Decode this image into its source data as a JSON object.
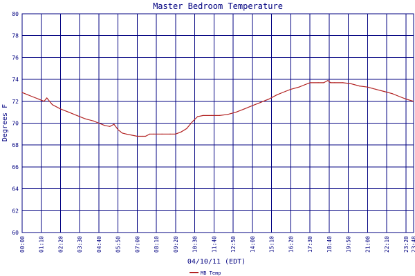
{
  "chart_data": {
    "type": "line",
    "title": "Master Bedroom Temperature",
    "xlabel": "04/10/11 (EDT)",
    "ylabel": "Degrees F",
    "ylim": [
      60,
      80
    ],
    "yticks": [
      "60",
      "62",
      "64",
      "66",
      "68",
      "70",
      "72",
      "74",
      "76",
      "78",
      "80"
    ],
    "xticks": [
      "00:00",
      "01:10",
      "02:20",
      "03:30",
      "04:40",
      "05:50",
      "07:00",
      "08:10",
      "09:20",
      "10:30",
      "11:40",
      "12:50",
      "14:00",
      "15:10",
      "16:20",
      "17:30",
      "18:40",
      "19:50",
      "21:00",
      "22:10",
      "23:20",
      "23:48"
    ],
    "grid": true,
    "legend_position": "bottom-center",
    "colors": {
      "series": "#b22222",
      "grid": "#000080",
      "text": "#000080"
    },
    "series": [
      {
        "name": "MB Temp",
        "x": [
          "00:00",
          "00:20",
          "00:40",
          "01:00",
          "01:10",
          "01:20",
          "01:30",
          "01:50",
          "02:20",
          "02:50",
          "03:20",
          "03:50",
          "04:20",
          "04:40",
          "05:00",
          "05:20",
          "05:35",
          "05:50",
          "06:05",
          "06:20",
          "06:40",
          "07:00",
          "07:20",
          "07:30",
          "07:45",
          "08:00",
          "08:30",
          "09:00",
          "09:20",
          "09:40",
          "10:00",
          "10:20",
          "10:40",
          "11:00",
          "11:30",
          "12:00",
          "12:30",
          "13:00",
          "13:30",
          "14:00",
          "14:30",
          "15:00",
          "15:30",
          "16:00",
          "16:20",
          "16:50",
          "17:10",
          "17:30",
          "18:00",
          "18:20",
          "18:35",
          "18:45",
          "19:00",
          "19:30",
          "20:00",
          "20:30",
          "21:00",
          "21:30",
          "22:00",
          "22:30",
          "23:00",
          "23:20",
          "23:48"
        ],
        "values": [
          72.8,
          72.6,
          72.4,
          72.2,
          72.1,
          72.0,
          72.3,
          71.7,
          71.3,
          71.0,
          70.7,
          70.4,
          70.2,
          70.0,
          69.8,
          69.7,
          69.9,
          69.4,
          69.1,
          69.0,
          68.9,
          68.8,
          68.8,
          68.8,
          69.0,
          69.0,
          69.0,
          69.0,
          69.0,
          69.2,
          69.5,
          70.1,
          70.6,
          70.7,
          70.7,
          70.7,
          70.8,
          71.0,
          71.3,
          71.6,
          71.9,
          72.2,
          72.6,
          72.9,
          73.1,
          73.3,
          73.5,
          73.7,
          73.7,
          73.7,
          73.9,
          73.7,
          73.7,
          73.7,
          73.6,
          73.4,
          73.3,
          73.1,
          72.9,
          72.7,
          72.4,
          72.2,
          72.0
        ]
      }
    ]
  }
}
